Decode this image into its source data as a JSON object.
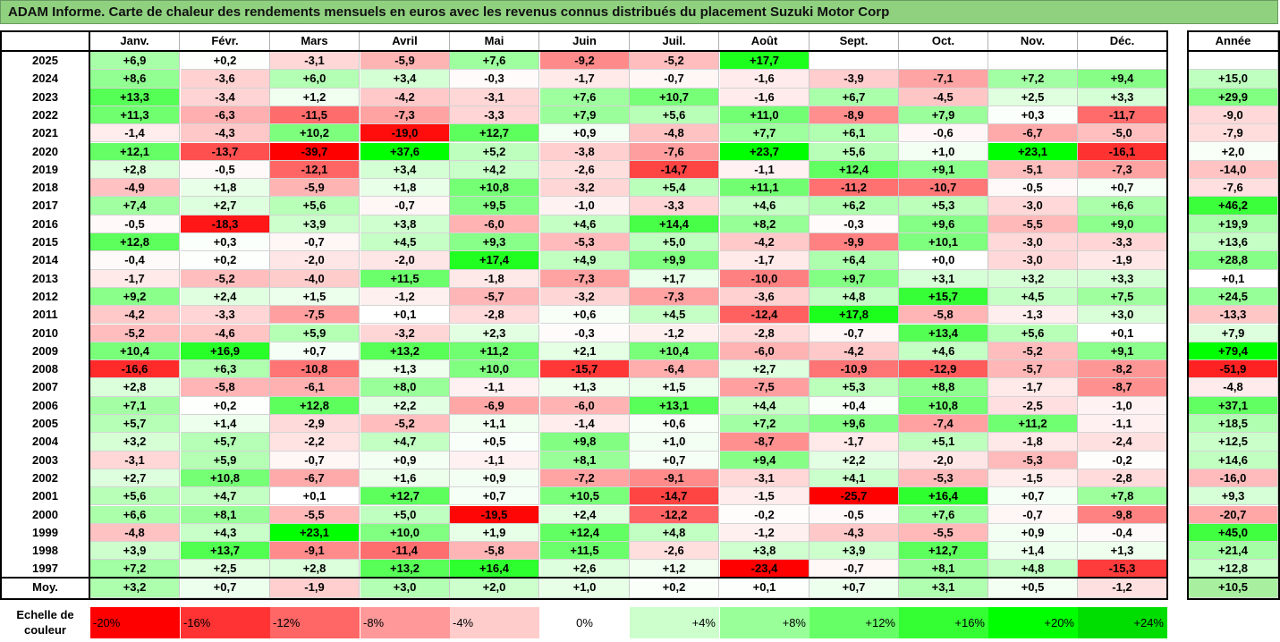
{
  "title": "ADAM Informe. Carte de chaleur des rendements mensuels en euros avec les revenus connus distribués du placement Suzuki Motor Corp",
  "chart_data": {
    "type": "heatmap",
    "title": "ADAM Informe. Carte de chaleur des rendements mensuels en euros avec les revenus connus distribués du placement Suzuki Motor Corp",
    "months": [
      "Janv.",
      "Févr.",
      "Mars",
      "Avril",
      "Mai",
      "Juin",
      "Juil.",
      "Août",
      "Sept.",
      "Oct.",
      "Nov.",
      "Déc."
    ],
    "year_col_label": "Année",
    "avg_label": "Moy.",
    "rows": [
      {
        "year": "2025",
        "values": [
          "+6,9",
          "+0,2",
          "-3,1",
          "-5,9",
          "+7,6",
          "-9,2",
          "-5,2",
          "+17,7",
          "",
          "",
          "",
          ""
        ],
        "total": ""
      },
      {
        "year": "2024",
        "values": [
          "+8,6",
          "-3,6",
          "+6,0",
          "+3,4",
          "-0,3",
          "-1,7",
          "-0,7",
          "-1,6",
          "-3,9",
          "-7,1",
          "+7,2",
          "+9,4"
        ],
        "total": "+15,0"
      },
      {
        "year": "2023",
        "values": [
          "+13,3",
          "-3,4",
          "+1,2",
          "-4,2",
          "-3,1",
          "+7,6",
          "+10,7",
          "-1,6",
          "+6,7",
          "-4,5",
          "+2,5",
          "+3,3"
        ],
        "total": "+29,9"
      },
      {
        "year": "2022",
        "values": [
          "+11,3",
          "-6,3",
          "-11,5",
          "-7,3",
          "-3,3",
          "+7,9",
          "+5,6",
          "+11,0",
          "-8,9",
          "+7,9",
          "+0,3",
          "-11,7"
        ],
        "total": "-9,0"
      },
      {
        "year": "2021",
        "values": [
          "-1,4",
          "-4,3",
          "+10,2",
          "-19,0",
          "+12,7",
          "+0,9",
          "-4,8",
          "+7,7",
          "+6,1",
          "-0,6",
          "-6,7",
          "-5,0"
        ],
        "total": "-7,9"
      },
      {
        "year": "2020",
        "values": [
          "+12,1",
          "-13,7",
          "-39,7",
          "+37,6",
          "+5,2",
          "-3,8",
          "-7,6",
          "+23,7",
          "+5,6",
          "+1,0",
          "+23,1",
          "-16,1"
        ],
        "total": "+2,0"
      },
      {
        "year": "2019",
        "values": [
          "+2,8",
          "-0,5",
          "-12,1",
          "+3,4",
          "+4,2",
          "-2,6",
          "-14,7",
          "-1,1",
          "+12,4",
          "+9,1",
          "-5,1",
          "-7,3"
        ],
        "total": "-14,0"
      },
      {
        "year": "2018",
        "values": [
          "-4,9",
          "+1,8",
          "-5,9",
          "+1,8",
          "+10,8",
          "-3,2",
          "+5,4",
          "+11,1",
          "-11,2",
          "-10,7",
          "-0,5",
          "+0,7"
        ],
        "total": "-7,6"
      },
      {
        "year": "2017",
        "values": [
          "+7,4",
          "+2,7",
          "+5,6",
          "-0,7",
          "+9,5",
          "-1,0",
          "-3,3",
          "+4,6",
          "+6,2",
          "+5,3",
          "-3,0",
          "+6,6"
        ],
        "total": "+46,2"
      },
      {
        "year": "2016",
        "values": [
          "-0,5",
          "-18,3",
          "+3,9",
          "+3,8",
          "-6,0",
          "+4,6",
          "+14,4",
          "+8,2",
          "-0,3",
          "+9,6",
          "-5,5",
          "+9,0"
        ],
        "total": "+19,9"
      },
      {
        "year": "2015",
        "values": [
          "+12,8",
          "+0,3",
          "-0,7",
          "+4,5",
          "+9,3",
          "-5,3",
          "+5,0",
          "-4,2",
          "-9,9",
          "+10,1",
          "-3,0",
          "-3,3"
        ],
        "total": "+13,6"
      },
      {
        "year": "2014",
        "values": [
          "-0,4",
          "+0,2",
          "-2,0",
          "-2,0",
          "+17,4",
          "+4,9",
          "+9,9",
          "-1,7",
          "+6,4",
          "+0,0",
          "-3,0",
          "-1,9"
        ],
        "total": "+28,8"
      },
      {
        "year": "2013",
        "values": [
          "-1,7",
          "-5,2",
          "-4,0",
          "+11,5",
          "-1,8",
          "-7,3",
          "+1,7",
          "-10,0",
          "+9,7",
          "+3,1",
          "+3,2",
          "+3,3"
        ],
        "total": "+0,1"
      },
      {
        "year": "2012",
        "values": [
          "+9,2",
          "+2,4",
          "+1,5",
          "-1,2",
          "-5,7",
          "-3,2",
          "-7,3",
          "-3,6",
          "+4,8",
          "+15,7",
          "+4,5",
          "+7,5"
        ],
        "total": "+24,5"
      },
      {
        "year": "2011",
        "values": [
          "-4,2",
          "-3,3",
          "-7,5",
          "+0,1",
          "-2,8",
          "+0,6",
          "+4,5",
          "-12,4",
          "+17,8",
          "-5,8",
          "-1,3",
          "+3,0"
        ],
        "total": "-13,3"
      },
      {
        "year": "2010",
        "values": [
          "-5,2",
          "-4,6",
          "+5,9",
          "-3,2",
          "+2,3",
          "-0,3",
          "-1,2",
          "-2,8",
          "-0,7",
          "+13,4",
          "+5,6",
          "+0,1"
        ],
        "total": "+7,9"
      },
      {
        "year": "2009",
        "values": [
          "+10,4",
          "+16,9",
          "+0,7",
          "+13,2",
          "+11,2",
          "+2,1",
          "+10,4",
          "-6,0",
          "-4,2",
          "+4,6",
          "-5,2",
          "+9,1"
        ],
        "total": "+79,4"
      },
      {
        "year": "2008",
        "values": [
          "-16,6",
          "+6,3",
          "-10,8",
          "+1,3",
          "+10,0",
          "-15,7",
          "-6,4",
          "+2,7",
          "-10,9",
          "-12,9",
          "-5,7",
          "-8,2"
        ],
        "total": "-51,9"
      },
      {
        "year": "2007",
        "values": [
          "+2,8",
          "-5,8",
          "-6,1",
          "+8,0",
          "-1,1",
          "+1,3",
          "+1,5",
          "-7,5",
          "+5,3",
          "+8,8",
          "-1,7",
          "-8,7"
        ],
        "total": "-4,8"
      },
      {
        "year": "2006",
        "values": [
          "+7,1",
          "+0,2",
          "+12,8",
          "+2,2",
          "-6,9",
          "-6,0",
          "+13,1",
          "+4,4",
          "+0,4",
          "+10,8",
          "-2,5",
          "-1,0"
        ],
        "total": "+37,1"
      },
      {
        "year": "2005",
        "values": [
          "+5,7",
          "+1,4",
          "-2,9",
          "-5,2",
          "+1,1",
          "-1,4",
          "+0,6",
          "+7,2",
          "+9,6",
          "-7,4",
          "+11,2",
          "-1,1"
        ],
        "total": "+18,5"
      },
      {
        "year": "2004",
        "values": [
          "+3,2",
          "+5,7",
          "-2,2",
          "+4,7",
          "+0,5",
          "+9,8",
          "+1,0",
          "-8,7",
          "-1,7",
          "+5,1",
          "-1,8",
          "-2,4"
        ],
        "total": "+12,5"
      },
      {
        "year": "2003",
        "values": [
          "-3,1",
          "+5,9",
          "-0,7",
          "+0,9",
          "-1,1",
          "+8,1",
          "+0,7",
          "+9,4",
          "+2,2",
          "-2,0",
          "-5,3",
          "-0,2"
        ],
        "total": "+14,6"
      },
      {
        "year": "2002",
        "values": [
          "+2,7",
          "+10,8",
          "-6,7",
          "+1,6",
          "+0,9",
          "-7,2",
          "-9,1",
          "-3,1",
          "+4,1",
          "-5,3",
          "-1,5",
          "-2,8"
        ],
        "total": "-16,0"
      },
      {
        "year": "2001",
        "values": [
          "+5,6",
          "+4,7",
          "+0,1",
          "+12,7",
          "+0,7",
          "+10,5",
          "-14,7",
          "-1,5",
          "-25,7",
          "+16,4",
          "+0,7",
          "+7,8"
        ],
        "total": "+9,3"
      },
      {
        "year": "2000",
        "values": [
          "+6,6",
          "+8,1",
          "-5,5",
          "+5,0",
          "-19,5",
          "+2,4",
          "-12,2",
          "-0,2",
          "-0,5",
          "+7,6",
          "-0,7",
          "-9,8"
        ],
        "total": "-20,7"
      },
      {
        "year": "1999",
        "values": [
          "-4,8",
          "+4,3",
          "+23,1",
          "+10,0",
          "+1,9",
          "+12,4",
          "+4,8",
          "-1,2",
          "-4,3",
          "-5,5",
          "+0,9",
          "-0,4"
        ],
        "total": "+45,0"
      },
      {
        "year": "1998",
        "values": [
          "+3,9",
          "+13,7",
          "-9,1",
          "-11,4",
          "-5,8",
          "+11,5",
          "-2,6",
          "+3,8",
          "+3,9",
          "+12,7",
          "+1,4",
          "+1,3"
        ],
        "total": "+21,4"
      },
      {
        "year": "1997",
        "values": [
          "+7,2",
          "+2,5",
          "+2,8",
          "+13,2",
          "+16,4",
          "+2,6",
          "+1,2",
          "-23,4",
          "-0,7",
          "+8,1",
          "+4,8",
          "-15,3"
        ],
        "total": "+12,8"
      }
    ],
    "averages": [
      "+3,2",
      "+0,7",
      "-1,9",
      "+3,0",
      "+2,0",
      "+1,0",
      "+0,2",
      "+0,1",
      "+0,7",
      "+3,1",
      "+0,5",
      "-1,2"
    ],
    "average_total": "+10,5",
    "scale_label": "Echelle de couleur",
    "scale": [
      {
        "label": "-20%",
        "value": -20,
        "color": "#ff0000"
      },
      {
        "label": "-16%",
        "value": -16,
        "color": "#ff3333"
      },
      {
        "label": "-12%",
        "value": -12,
        "color": "#ff6666"
      },
      {
        "label": "-8%",
        "value": -8,
        "color": "#ff9999"
      },
      {
        "label": "-4%",
        "value": -4,
        "color": "#ffcccc"
      },
      {
        "label": "0%",
        "value": 0,
        "color": "#ffffff"
      },
      {
        "label": "+4%",
        "value": 4,
        "color": "#ccffcc"
      },
      {
        "label": "+8%",
        "value": 8,
        "color": "#99ff99"
      },
      {
        "label": "+12%",
        "value": 12,
        "color": "#66ff66"
      },
      {
        "label": "+16%",
        "value": 16,
        "color": "#33ff33"
      },
      {
        "label": "+20%",
        "value": 20,
        "color": "#00ff00"
      },
      {
        "label": "+24%",
        "value": 24,
        "color": "#00dd00"
      }
    ]
  }
}
